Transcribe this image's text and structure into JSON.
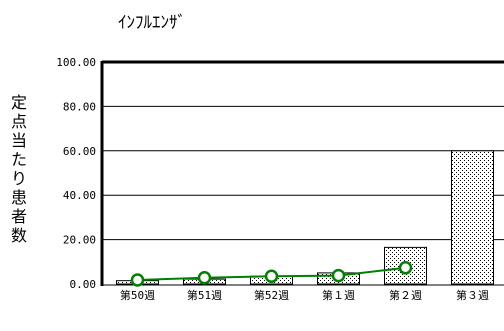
{
  "chart_data": {
    "type": "bar",
    "title": "ｲﾝﾌﾙｴﾝｻﾞ",
    "ylabel": "定点当たり患者数",
    "ylim": [
      0,
      100
    ],
    "yticks": [
      "100.00",
      "80.00",
      "60.00",
      "40.00",
      "20.00",
      "0.00"
    ],
    "categories": [
      "第50週",
      "第51週",
      "第52週",
      "第１週",
      "第２週",
      "第３週"
    ],
    "series": [
      {
        "type": "bar",
        "values": [
          1.5,
          2.2,
          3.5,
          5.0,
          16.5,
          60.0
        ],
        "color": "#000000"
      },
      {
        "type": "line",
        "values": [
          1.8,
          2.8,
          3.5,
          3.8,
          7.3,
          null
        ],
        "color": "#008000"
      }
    ],
    "grid": true
  }
}
